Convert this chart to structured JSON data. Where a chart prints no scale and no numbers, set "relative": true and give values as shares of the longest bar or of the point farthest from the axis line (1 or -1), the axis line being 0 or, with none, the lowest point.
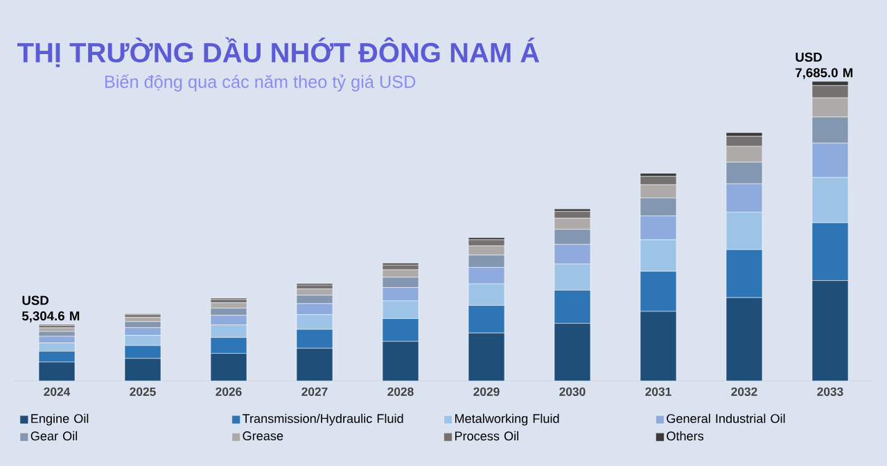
{
  "chart_data": {
    "type": "bar",
    "title": "THỊ TRƯỜNG DẦU NHỚT ĐÔNG NAM Á",
    "subtitle": "Biến động qua các năm theo tỷ giá USD",
    "categories": [
      "2024",
      "2025",
      "2026",
      "2027",
      "2028",
      "2029",
      "2030",
      "2031",
      "2032",
      "2033"
    ],
    "relative": true,
    "stacked": true,
    "legend": "bottom",
    "totals": [
      "USD 5,304.6 M",
      null,
      null,
      null,
      null,
      null,
      null,
      null,
      null,
      "USD 7,685.0 M"
    ],
    "series": [
      {
        "name": "Engine Oil",
        "color": "#1f4e79",
        "values": [
          0.063,
          0.075,
          0.092,
          0.109,
          0.132,
          0.16,
          0.192,
          0.232,
          0.278,
          0.335
        ]
      },
      {
        "name": "Transmission/Hydraulic Fluid",
        "color": "#2e75b6",
        "values": [
          0.036,
          0.043,
          0.053,
          0.063,
          0.076,
          0.092,
          0.111,
          0.134,
          0.16,
          0.193
        ]
      },
      {
        "name": "Metalworking Fluid",
        "color": "#9dc3e6",
        "values": [
          0.028,
          0.034,
          0.042,
          0.049,
          0.059,
          0.072,
          0.087,
          0.105,
          0.125,
          0.151
        ]
      },
      {
        "name": "General Industrial Oil",
        "color": "#8faadc",
        "values": [
          0.022,
          0.026,
          0.032,
          0.037,
          0.045,
          0.055,
          0.066,
          0.08,
          0.095,
          0.115
        ]
      },
      {
        "name": "Gear Oil",
        "color": "#8497b0",
        "values": [
          0.016,
          0.02,
          0.024,
          0.028,
          0.034,
          0.041,
          0.05,
          0.06,
          0.072,
          0.087
        ]
      },
      {
        "name": "Grease",
        "color": "#aeaaaa",
        "values": [
          0.012,
          0.014,
          0.018,
          0.021,
          0.025,
          0.031,
          0.037,
          0.044,
          0.053,
          0.064
        ]
      },
      {
        "name": "Process Oil",
        "color": "#767171",
        "values": [
          0.008,
          0.009,
          0.011,
          0.013,
          0.016,
          0.02,
          0.023,
          0.028,
          0.034,
          0.041
        ]
      },
      {
        "name": "Others",
        "color": "#3a3838",
        "values": [
          0.003,
          0.003,
          0.004,
          0.005,
          0.006,
          0.007,
          0.008,
          0.01,
          0.012,
          0.014
        ]
      }
    ]
  }
}
